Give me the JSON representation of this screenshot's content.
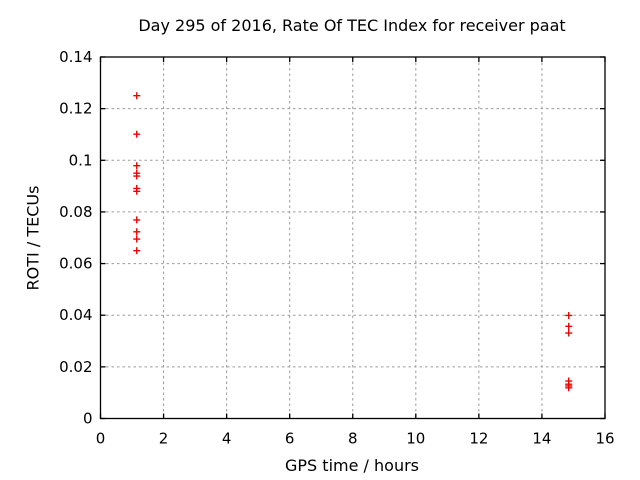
{
  "chart_data": {
    "type": "scatter",
    "title": "Day 295 of 2016, Rate Of TEC Index for receiver paat",
    "xlabel": "GPS time / hours",
    "ylabel": "ROTI / TECUs",
    "xlim": [
      0,
      16
    ],
    "ylim": [
      0,
      0.14
    ],
    "xticks": {
      "values": [
        0,
        2,
        4,
        6,
        8,
        10,
        12,
        14,
        16
      ],
      "labels": [
        "0",
        "2",
        "4",
        "6",
        "8",
        "10",
        "12",
        "14",
        "16"
      ]
    },
    "yticks": {
      "values": [
        0,
        0.02,
        0.04,
        0.06,
        0.08,
        0.1,
        0.12,
        0.14
      ],
      "labels": [
        "0",
        "0.02",
        "0.04",
        "0.06",
        "0.08",
        "0.1",
        "0.12",
        "0.14"
      ]
    },
    "grid": "dashed",
    "legend": "none",
    "marker": {
      "shape": "plus",
      "size": 7
    },
    "series": [
      {
        "name": "ROTI",
        "points": [
          [
            1.15,
            0.125
          ],
          [
            1.15,
            0.1101
          ],
          [
            1.15,
            0.0979
          ],
          [
            1.15,
            0.095
          ],
          [
            1.15,
            0.0939
          ],
          [
            1.15,
            0.0891
          ],
          [
            1.15,
            0.088
          ],
          [
            1.15,
            0.0769
          ],
          [
            1.15,
            0.0723
          ],
          [
            1.15,
            0.0695
          ],
          [
            1.15,
            0.065
          ],
          [
            14.85,
            0.0399
          ],
          [
            14.85,
            0.0357
          ],
          [
            14.85,
            0.0331
          ],
          [
            14.85,
            0.0145
          ],
          [
            14.85,
            0.0133
          ],
          [
            14.85,
            0.0126
          ],
          [
            14.85,
            0.0119
          ]
        ]
      }
    ]
  },
  "colors": {
    "marker": "#ee0000",
    "grid": "#9a9a9a",
    "axis": "#000000",
    "text": "#000000",
    "background": "#ffffff"
  }
}
